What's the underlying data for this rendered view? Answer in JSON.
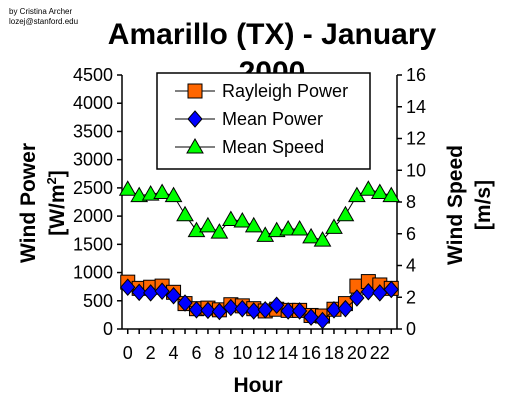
{
  "credit": [
    "by Cristina Archer",
    "lozej@stanford.edu"
  ],
  "chart_data": {
    "type": "line",
    "title": "Amarillo (TX) - January",
    "title_line2": "2000",
    "xlabel": "Hour",
    "ylabel": "Wind Power",
    "ylabel_unit": "[W/m",
    "ylabel_sup": "2",
    "ylabel_close": "]",
    "y2label": "Wind Speed",
    "y2label_unit": "[m/s]",
    "x": [
      0,
      1,
      2,
      3,
      4,
      5,
      6,
      7,
      8,
      9,
      10,
      11,
      12,
      13,
      14,
      15,
      16,
      17,
      18,
      19,
      20,
      21,
      22,
      23
    ],
    "x_tick_labels": [
      "0",
      "2",
      "4",
      "6",
      "8",
      "10",
      "12",
      "14",
      "16",
      "18",
      "20",
      "22"
    ],
    "x_tick_values": [
      0,
      2,
      4,
      6,
      8,
      10,
      12,
      14,
      16,
      18,
      20,
      22
    ],
    "xlim": [
      -0.5,
      23.5
    ],
    "ylim": [
      0,
      4500
    ],
    "y_ticks": [
      "0",
      "500",
      "1000",
      "1500",
      "2000",
      "2500",
      "3000",
      "3500",
      "4000",
      "4500"
    ],
    "y2lim": [
      0,
      16
    ],
    "y2_ticks": [
      "0",
      "2",
      "4",
      "6",
      "8",
      "10",
      "12",
      "14",
      "16"
    ],
    "legend_position": "top-center",
    "grid": false,
    "series": [
      {
        "name": "Rayleigh Power",
        "marker": "square",
        "axis": "left",
        "color": "#FF6600",
        "values": [
          830,
          720,
          740,
          760,
          650,
          450,
          360,
          370,
          340,
          430,
          410,
          360,
          320,
          350,
          330,
          330,
          240,
          230,
          350,
          450,
          760,
          840,
          780,
          720
        ]
      },
      {
        "name": "Mean Power",
        "marker": "diamond",
        "axis": "left",
        "color": "#0000FF",
        "values": [
          740,
          650,
          640,
          670,
          590,
          460,
          340,
          330,
          310,
          380,
          360,
          320,
          340,
          420,
          320,
          320,
          210,
          150,
          340,
          360,
          550,
          660,
          640,
          700
        ]
      },
      {
        "name": "Mean Speed",
        "marker": "triangle",
        "axis": "right",
        "color": "#00FF00",
        "values": [
          8.8,
          8.4,
          8.5,
          8.6,
          8.4,
          7.2,
          6.2,
          6.5,
          6.1,
          6.9,
          6.8,
          6.5,
          5.9,
          6.2,
          6.3,
          6.3,
          5.8,
          5.6,
          6.4,
          7.2,
          8.4,
          8.8,
          8.6,
          8.4
        ]
      }
    ]
  }
}
